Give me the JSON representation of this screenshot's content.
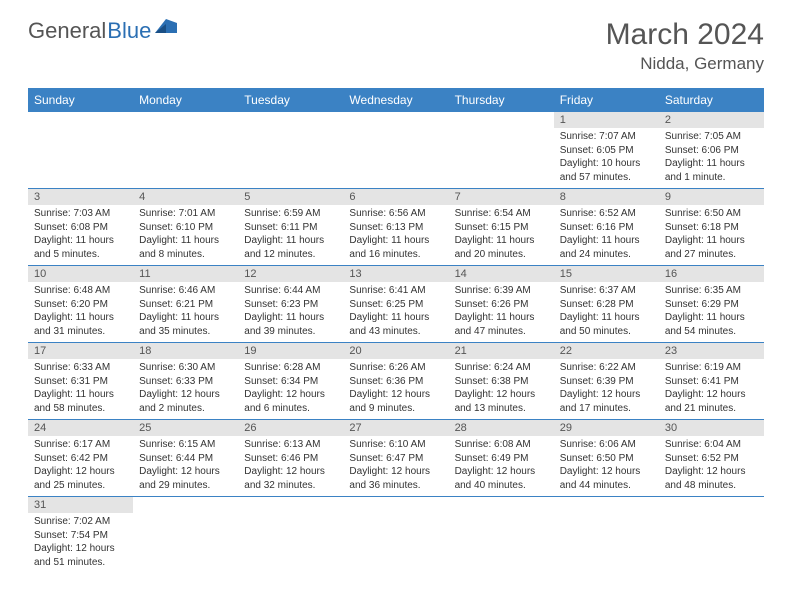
{
  "brand": {
    "general": "General",
    "blue": "Blue"
  },
  "title": "March 2024",
  "location": "Nidda, Germany",
  "colors": {
    "header_bg": "#3b82c4",
    "header_text": "#ffffff",
    "daynum_bg": "#e4e4e4",
    "row_border": "#3b82c4",
    "text": "#333333",
    "title_text": "#555555"
  },
  "weekdays": [
    "Sunday",
    "Monday",
    "Tuesday",
    "Wednesday",
    "Thursday",
    "Friday",
    "Saturday"
  ],
  "weeks": [
    [
      null,
      null,
      null,
      null,
      null,
      {
        "n": "1",
        "sr": "Sunrise: 7:07 AM",
        "ss": "Sunset: 6:05 PM",
        "dl": "Daylight: 10 hours and 57 minutes."
      },
      {
        "n": "2",
        "sr": "Sunrise: 7:05 AM",
        "ss": "Sunset: 6:06 PM",
        "dl": "Daylight: 11 hours and 1 minute."
      }
    ],
    [
      {
        "n": "3",
        "sr": "Sunrise: 7:03 AM",
        "ss": "Sunset: 6:08 PM",
        "dl": "Daylight: 11 hours and 5 minutes."
      },
      {
        "n": "4",
        "sr": "Sunrise: 7:01 AM",
        "ss": "Sunset: 6:10 PM",
        "dl": "Daylight: 11 hours and 8 minutes."
      },
      {
        "n": "5",
        "sr": "Sunrise: 6:59 AM",
        "ss": "Sunset: 6:11 PM",
        "dl": "Daylight: 11 hours and 12 minutes."
      },
      {
        "n": "6",
        "sr": "Sunrise: 6:56 AM",
        "ss": "Sunset: 6:13 PM",
        "dl": "Daylight: 11 hours and 16 minutes."
      },
      {
        "n": "7",
        "sr": "Sunrise: 6:54 AM",
        "ss": "Sunset: 6:15 PM",
        "dl": "Daylight: 11 hours and 20 minutes."
      },
      {
        "n": "8",
        "sr": "Sunrise: 6:52 AM",
        "ss": "Sunset: 6:16 PM",
        "dl": "Daylight: 11 hours and 24 minutes."
      },
      {
        "n": "9",
        "sr": "Sunrise: 6:50 AM",
        "ss": "Sunset: 6:18 PM",
        "dl": "Daylight: 11 hours and 27 minutes."
      }
    ],
    [
      {
        "n": "10",
        "sr": "Sunrise: 6:48 AM",
        "ss": "Sunset: 6:20 PM",
        "dl": "Daylight: 11 hours and 31 minutes."
      },
      {
        "n": "11",
        "sr": "Sunrise: 6:46 AM",
        "ss": "Sunset: 6:21 PM",
        "dl": "Daylight: 11 hours and 35 minutes."
      },
      {
        "n": "12",
        "sr": "Sunrise: 6:44 AM",
        "ss": "Sunset: 6:23 PM",
        "dl": "Daylight: 11 hours and 39 minutes."
      },
      {
        "n": "13",
        "sr": "Sunrise: 6:41 AM",
        "ss": "Sunset: 6:25 PM",
        "dl": "Daylight: 11 hours and 43 minutes."
      },
      {
        "n": "14",
        "sr": "Sunrise: 6:39 AM",
        "ss": "Sunset: 6:26 PM",
        "dl": "Daylight: 11 hours and 47 minutes."
      },
      {
        "n": "15",
        "sr": "Sunrise: 6:37 AM",
        "ss": "Sunset: 6:28 PM",
        "dl": "Daylight: 11 hours and 50 minutes."
      },
      {
        "n": "16",
        "sr": "Sunrise: 6:35 AM",
        "ss": "Sunset: 6:29 PM",
        "dl": "Daylight: 11 hours and 54 minutes."
      }
    ],
    [
      {
        "n": "17",
        "sr": "Sunrise: 6:33 AM",
        "ss": "Sunset: 6:31 PM",
        "dl": "Daylight: 11 hours and 58 minutes."
      },
      {
        "n": "18",
        "sr": "Sunrise: 6:30 AM",
        "ss": "Sunset: 6:33 PM",
        "dl": "Daylight: 12 hours and 2 minutes."
      },
      {
        "n": "19",
        "sr": "Sunrise: 6:28 AM",
        "ss": "Sunset: 6:34 PM",
        "dl": "Daylight: 12 hours and 6 minutes."
      },
      {
        "n": "20",
        "sr": "Sunrise: 6:26 AM",
        "ss": "Sunset: 6:36 PM",
        "dl": "Daylight: 12 hours and 9 minutes."
      },
      {
        "n": "21",
        "sr": "Sunrise: 6:24 AM",
        "ss": "Sunset: 6:38 PM",
        "dl": "Daylight: 12 hours and 13 minutes."
      },
      {
        "n": "22",
        "sr": "Sunrise: 6:22 AM",
        "ss": "Sunset: 6:39 PM",
        "dl": "Daylight: 12 hours and 17 minutes."
      },
      {
        "n": "23",
        "sr": "Sunrise: 6:19 AM",
        "ss": "Sunset: 6:41 PM",
        "dl": "Daylight: 12 hours and 21 minutes."
      }
    ],
    [
      {
        "n": "24",
        "sr": "Sunrise: 6:17 AM",
        "ss": "Sunset: 6:42 PM",
        "dl": "Daylight: 12 hours and 25 minutes."
      },
      {
        "n": "25",
        "sr": "Sunrise: 6:15 AM",
        "ss": "Sunset: 6:44 PM",
        "dl": "Daylight: 12 hours and 29 minutes."
      },
      {
        "n": "26",
        "sr": "Sunrise: 6:13 AM",
        "ss": "Sunset: 6:46 PM",
        "dl": "Daylight: 12 hours and 32 minutes."
      },
      {
        "n": "27",
        "sr": "Sunrise: 6:10 AM",
        "ss": "Sunset: 6:47 PM",
        "dl": "Daylight: 12 hours and 36 minutes."
      },
      {
        "n": "28",
        "sr": "Sunrise: 6:08 AM",
        "ss": "Sunset: 6:49 PM",
        "dl": "Daylight: 12 hours and 40 minutes."
      },
      {
        "n": "29",
        "sr": "Sunrise: 6:06 AM",
        "ss": "Sunset: 6:50 PM",
        "dl": "Daylight: 12 hours and 44 minutes."
      },
      {
        "n": "30",
        "sr": "Sunrise: 6:04 AM",
        "ss": "Sunset: 6:52 PM",
        "dl": "Daylight: 12 hours and 48 minutes."
      }
    ],
    [
      {
        "n": "31",
        "sr": "Sunrise: 7:02 AM",
        "ss": "Sunset: 7:54 PM",
        "dl": "Daylight: 12 hours and 51 minutes."
      },
      null,
      null,
      null,
      null,
      null,
      null
    ]
  ]
}
